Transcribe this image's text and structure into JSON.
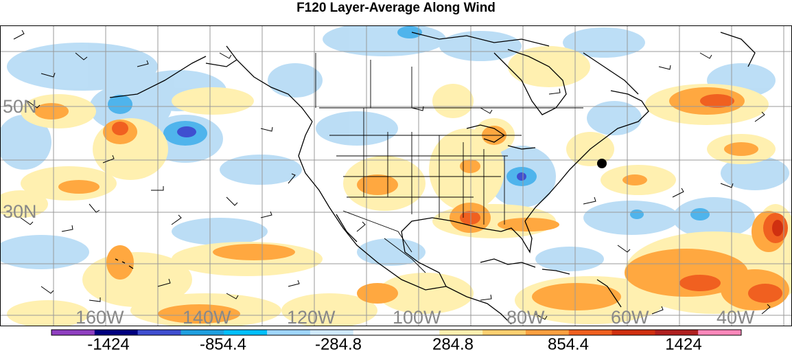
{
  "title": "F120 Layer-Average Along Wind",
  "map": {
    "lat_labels": [
      "50N",
      "30N"
    ],
    "lon_labels": [
      "160W",
      "140W",
      "120W",
      "100W",
      "80W",
      "60W",
      "40W"
    ],
    "land_line_color": "#000000",
    "grid_color": "#999999",
    "marker": "storm-center-dot"
  },
  "colorbar": {
    "colors": [
      "#8f3fc0",
      "#00007f",
      "#3f4fd0",
      "#1f9fdf",
      "#00bfff",
      "#9fd6ff",
      "#d0eaff",
      "#ffffff",
      "#ffffff",
      "#fff0b0",
      "#ffd070",
      "#ffa040",
      "#f06020",
      "#d03010",
      "#b02020",
      "#ff88bb"
    ],
    "labels": [
      "-1424",
      "-854.4",
      "-284.8",
      "284.8",
      "854.4",
      "1424"
    ]
  }
}
